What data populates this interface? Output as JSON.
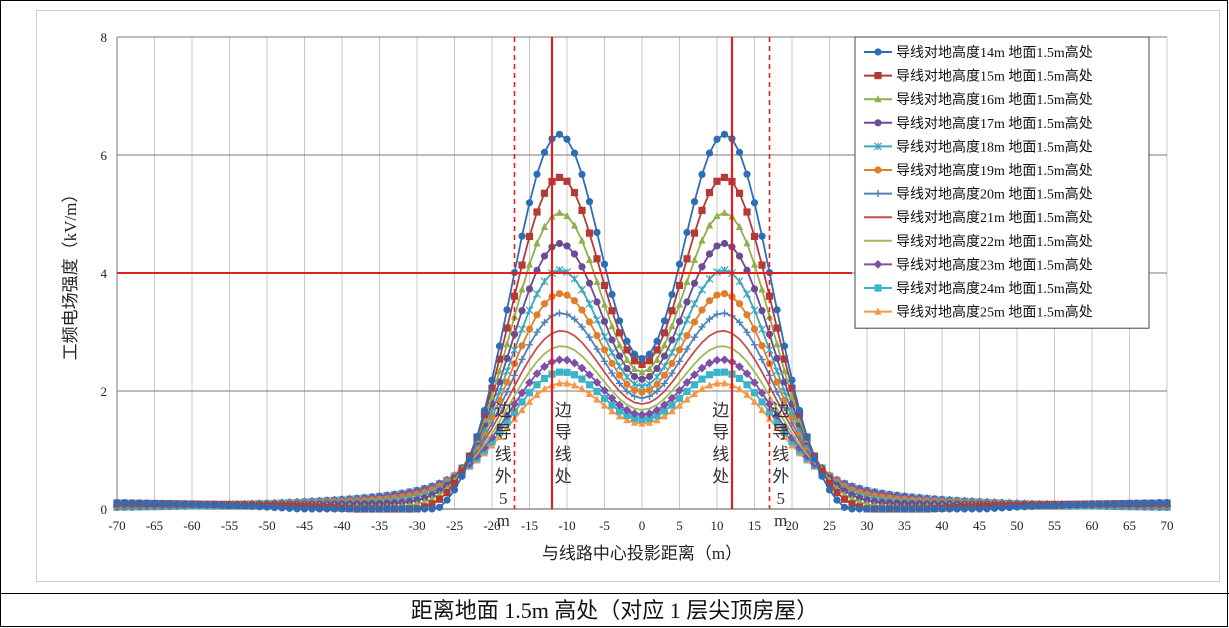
{
  "caption": "距离地面 1.5m 高处（对应 1 层尖顶房屋）",
  "chart_data": {
    "type": "line",
    "xlabel": "与线路中心投影距离（m）",
    "ylabel": "工频电场强度（kV/m）",
    "xlim": [
      -70,
      70
    ],
    "ylim": [
      0,
      8
    ],
    "x_ticks": [
      -70,
      -65,
      -60,
      -55,
      -50,
      -45,
      -40,
      -35,
      -30,
      -25,
      -20,
      -15,
      -10,
      -5,
      0,
      5,
      10,
      15,
      20,
      25,
      30,
      35,
      40,
      45,
      50,
      55,
      60,
      65,
      70
    ],
    "y_ticks": [
      0,
      2,
      4,
      6,
      8
    ],
    "grid": true,
    "legend_position": "top-right",
    "x_step": 1,
    "threshold_line": {
      "y": 4,
      "color": "#e02020"
    },
    "vertical_lines": [
      {
        "x": -17,
        "style": "dashed",
        "color": "#e02020"
      },
      {
        "x": -12,
        "style": "solid",
        "color": "#e02020"
      },
      {
        "x": 12,
        "style": "solid",
        "color": "#e02020"
      },
      {
        "x": 17,
        "style": "dashed",
        "color": "#e02020"
      }
    ],
    "annotations": [
      {
        "text": "边导线外5m",
        "x": -18.5
      },
      {
        "text": "边导线处",
        "x": -10.5
      },
      {
        "text": "边导线处",
        "x": 10.5
      },
      {
        "text": "边导线外5m",
        "x": 18.5
      }
    ],
    "series": [
      {
        "name": "导线对地高度14m 地面1.5m高处",
        "color": "#2e6db5",
        "marker": "circle",
        "peak": 6.35,
        "center": 2.55,
        "tail": 0.11
      },
      {
        "name": "导线对地高度15m 地面1.5m高处",
        "color": "#b33a36",
        "marker": "square",
        "peak": 5.62,
        "center": 2.45,
        "tail": 0.1
      },
      {
        "name": "导线对地高度16m 地面1.5m高处",
        "color": "#8fb04a",
        "marker": "triangle",
        "peak": 5.02,
        "center": 2.32,
        "tail": 0.09
      },
      {
        "name": "导线对地高度17m 地面1.5m高处",
        "color": "#6b4b93",
        "marker": "circle",
        "peak": 4.5,
        "center": 2.2,
        "tail": 0.08
      },
      {
        "name": "导线对地高度18m 地面1.5m高处",
        "color": "#3aa6b9",
        "marker": "star",
        "peak": 4.05,
        "center": 2.08,
        "tail": 0.07
      },
      {
        "name": "导线对地高度19m 地面1.5m高处",
        "color": "#e07e2a",
        "marker": "circle",
        "peak": 3.65,
        "center": 1.98,
        "tail": 0.06
      },
      {
        "name": "导线对地高度20m 地面1.5m高处",
        "color": "#4f81bd",
        "marker": "plus",
        "peak": 3.32,
        "center": 1.88,
        "tail": 0.05
      },
      {
        "name": "导线对地高度21m 地面1.5m高处",
        "color": "#c0504d",
        "marker": "none",
        "peak": 3.02,
        "center": 1.78,
        "tail": 0.05
      },
      {
        "name": "导线对地高度22m 地面1.5m高处",
        "color": "#9bbb59",
        "marker": "none",
        "peak": 2.76,
        "center": 1.68,
        "tail": 0.04
      },
      {
        "name": "导线对地高度23m 地面1.5m高处",
        "color": "#7f4fa8",
        "marker": "diamond",
        "peak": 2.53,
        "center": 1.6,
        "tail": 0.04
      },
      {
        "name": "导线对地高度24m 地面1.5m高处",
        "color": "#3cb4c8",
        "marker": "square",
        "peak": 2.32,
        "center": 1.52,
        "tail": 0.03
      },
      {
        "name": "导线对地高度25m 地面1.5m高处",
        "color": "#f79646",
        "marker": "triangle",
        "peak": 2.13,
        "center": 1.45,
        "tail": 0.03
      }
    ]
  }
}
